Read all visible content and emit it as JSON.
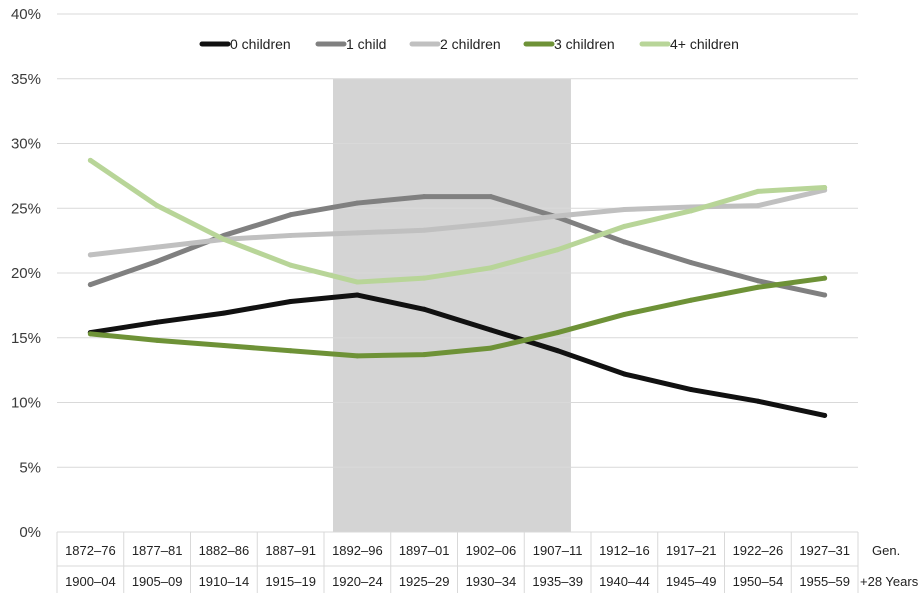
{
  "chart_data": {
    "type": "line",
    "categories": [
      "1872–76",
      "1877–81",
      "1882–86",
      "1887–91",
      "1892–96",
      "1897–01",
      "1902–06",
      "1907–11",
      "1912–16",
      "1917–21",
      "1922–26",
      "1927–31"
    ],
    "categories_row2": [
      "1900–04",
      "1905–09",
      "1910–14",
      "1915–19",
      "1920–24",
      "1925–29",
      "1930–34",
      "1935–39",
      "1940–44",
      "1945–49",
      "1950–54",
      "1955–59"
    ],
    "row_labels": {
      "gen": "Gen.",
      "years": "+28 Years"
    },
    "ylim": [
      0,
      40
    ],
    "yticks": [
      0,
      5,
      10,
      15,
      20,
      25,
      30,
      35,
      40
    ],
    "ytick_labels": [
      "0%",
      "5%",
      "10%",
      "15%",
      "20%",
      "25%",
      "30%",
      "35%",
      "40%"
    ],
    "grid": true,
    "legend_position": "top",
    "shaded_region": {
      "from": "1892–96",
      "to": "1907–11",
      "color": "#d4d4d4"
    },
    "series": [
      {
        "name": "0 children",
        "color": "#111111",
        "values": [
          15.4,
          16.2,
          16.9,
          17.8,
          18.3,
          17.2,
          15.6,
          14.0,
          12.2,
          11.0,
          10.1,
          9.0
        ]
      },
      {
        "name": "1 child",
        "color": "#808080",
        "values": [
          19.1,
          20.9,
          22.9,
          24.5,
          25.4,
          25.9,
          25.9,
          24.3,
          22.4,
          20.8,
          19.4,
          18.3
        ]
      },
      {
        "name": "2 children",
        "color": "#c0c0c0",
        "values": [
          21.4,
          22.0,
          22.6,
          22.9,
          23.1,
          23.3,
          23.8,
          24.4,
          24.9,
          25.1,
          25.2,
          26.4
        ]
      },
      {
        "name": "3 children",
        "color": "#6e9237",
        "values": [
          15.3,
          14.8,
          14.4,
          14.0,
          13.6,
          13.7,
          14.2,
          15.4,
          16.8,
          17.9,
          18.9,
          19.6
        ]
      },
      {
        "name": "4+ children",
        "color": "#b8d598",
        "values": [
          28.7,
          25.2,
          22.6,
          20.6,
          19.3,
          19.6,
          20.4,
          21.8,
          23.6,
          24.8,
          26.3,
          26.6
        ]
      }
    ]
  }
}
